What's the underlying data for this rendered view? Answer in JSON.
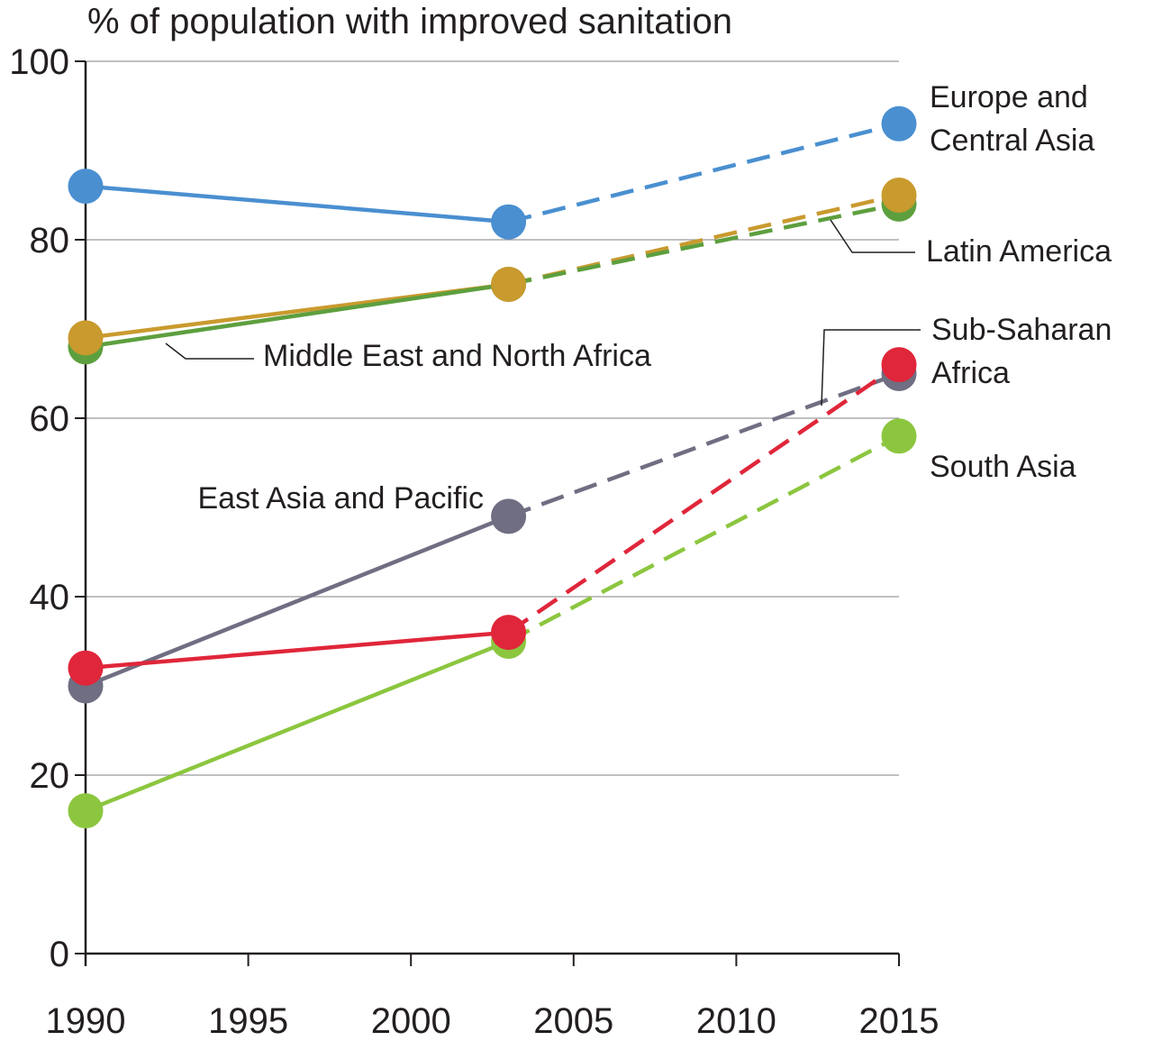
{
  "chart_data": {
    "type": "line",
    "title": "% of population with improved sanitation",
    "xlabel": "",
    "ylabel": "",
    "xlim": [
      1990,
      2015
    ],
    "ylim": [
      0,
      100
    ],
    "x_ticks": [
      "1990",
      "1995",
      "2000",
      "2005",
      "2010",
      "2015"
    ],
    "y_ticks": [
      "0",
      "20",
      "40",
      "60",
      "80",
      "100"
    ],
    "grid": "horizontal",
    "actual_x": [
      1990,
      2003
    ],
    "projected_x": [
      2003,
      2015
    ],
    "series": [
      {
        "name": "Europe and Central Asia",
        "label_lines": [
          "Europe and",
          "Central Asia"
        ],
        "color": "#4a8fd0",
        "x": [
          1990,
          2003,
          2015
        ],
        "values": [
          86,
          82,
          93
        ]
      },
      {
        "name": "Latin America",
        "label_lines": [
          "Latin America"
        ],
        "color": "#c99a2e",
        "x": [
          1990,
          2003,
          2015
        ],
        "values": [
          69,
          75,
          85
        ]
      },
      {
        "name": "Middle East and North Africa",
        "label_lines": [
          "Middle East and North Africa"
        ],
        "color": "#5d9f3e",
        "x": [
          1990,
          2003,
          2015
        ],
        "values": [
          68,
          75,
          84
        ]
      },
      {
        "name": "East Asia and Pacific",
        "label_lines": [
          "East Asia and Pacific"
        ],
        "color": "#6f6e82",
        "x": [
          1990,
          2003,
          2015
        ],
        "values": [
          30,
          49,
          65
        ]
      },
      {
        "name": "Sub-Saharan Africa",
        "label_lines": [
          "Sub-Saharan",
          "Africa"
        ],
        "color": "#e0263a",
        "x": [
          1990,
          2003,
          2015
        ],
        "values": [
          32,
          36,
          66
        ]
      },
      {
        "name": "South Asia",
        "label_lines": [
          "South Asia"
        ],
        "color": "#8cc63f",
        "x": [
          1990,
          2003,
          2015
        ],
        "values": [
          16,
          35,
          58
        ]
      }
    ]
  }
}
